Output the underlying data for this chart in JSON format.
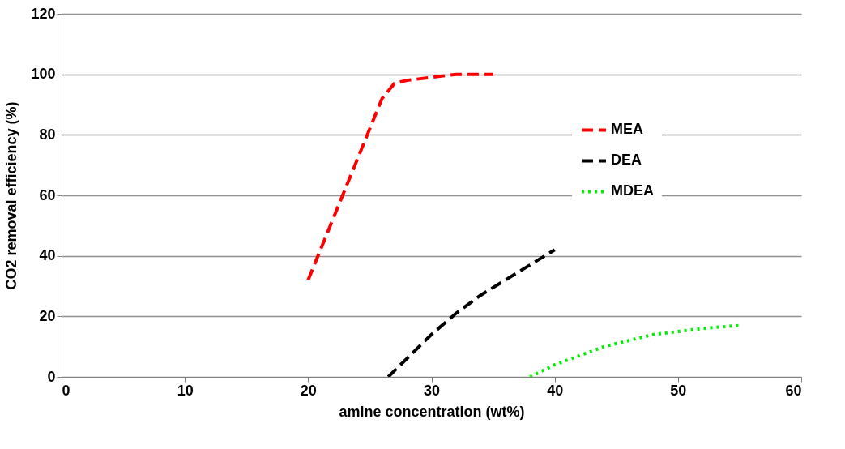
{
  "chart_data": {
    "type": "line",
    "xlabel": "amine concentration (wt%)",
    "ylabel": "CO2 removal  efficiency (%)",
    "xlim": [
      0,
      60
    ],
    "xticks": [
      0,
      10,
      20,
      30,
      40,
      50,
      60
    ],
    "ylim": [
      0,
      120
    ],
    "yticks": [
      0,
      20,
      40,
      60,
      80,
      100,
      120
    ],
    "grid": "y",
    "legend": "right",
    "series": [
      {
        "name": "MEA",
        "color": "#ff0000",
        "line_style": "dashed",
        "x": [
          20,
          22,
          24,
          26,
          27,
          28,
          30,
          32,
          35
        ],
        "values": [
          32,
          52,
          72,
          92,
          97,
          98,
          99,
          100,
          100
        ]
      },
      {
        "name": "DEA",
        "color": "#000000",
        "line_style": "dashed",
        "x": [
          26.5,
          28,
          30,
          32,
          34,
          36,
          38,
          40
        ],
        "values": [
          0,
          6,
          14,
          21,
          27,
          32,
          37,
          42
        ]
      },
      {
        "name": "MDEA",
        "color": "#00ee00",
        "line_style": "dotted",
        "x": [
          38,
          40,
          42,
          44,
          46,
          48,
          50,
          52,
          55
        ],
        "values": [
          0,
          4,
          7,
          10,
          12,
          14,
          15,
          16,
          17
        ]
      }
    ]
  }
}
